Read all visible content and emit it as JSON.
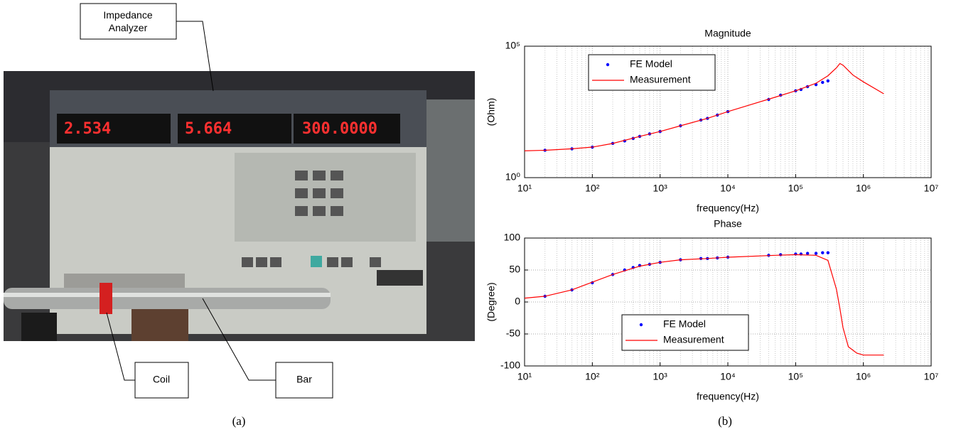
{
  "figure": {
    "callouts": [
      "Impedance Analyzer",
      "Coil",
      "Bar"
    ],
    "captions": [
      "(a)",
      "(b)"
    ],
    "displays": [
      "2.534",
      "5.664",
      "300.0000"
    ]
  },
  "chart_data": [
    {
      "type": "line",
      "title": "Magnitude",
      "xlabel": "frequency(Hz)",
      "ylabel": "(Ohm)",
      "xscale": "log",
      "yscale": "log",
      "xlim": [
        10,
        10000000
      ],
      "ylim": [
        1,
        100000
      ],
      "xticks": [
        {
          "value": 10,
          "label": "10¹"
        },
        {
          "value": 100,
          "label": "10²"
        },
        {
          "value": 1000,
          "label": "10³"
        },
        {
          "value": 10000,
          "label": "10⁴"
        },
        {
          "value": 100000,
          "label": "10⁵"
        },
        {
          "value": 1000000,
          "label": "10⁶"
        },
        {
          "value": 10000000,
          "label": "10⁷"
        }
      ],
      "yticks": [
        {
          "value": 1,
          "label": "10⁰"
        },
        {
          "value": 100000,
          "label": "10⁵"
        }
      ],
      "grid": true,
      "legend": "upper left",
      "series": [
        {
          "name": "FE Model",
          "style": "markers",
          "color": "#0000ff",
          "x": [
            20,
            50,
            100,
            200,
            300,
            400,
            500,
            700,
            1000,
            2000,
            4000,
            5000,
            7000,
            10000,
            40000,
            60000,
            100000,
            120000,
            150000,
            200000,
            250000,
            300000
          ],
          "values": [
            11,
            12.5,
            14.5,
            20,
            25,
            31,
            37,
            46,
            57,
            94,
            155,
            180,
            240,
            325,
            940,
            1370,
            2000,
            2250,
            2900,
            3470,
            4200,
            4800
          ]
        },
        {
          "name": "Measurement",
          "style": "line",
          "color": "#ff0000",
          "x": [
            10,
            20,
            50,
            100,
            200,
            500,
            1000,
            2000,
            5000,
            10000,
            20000,
            50000,
            100000,
            200000,
            300000,
            400000,
            450000,
            500000,
            700000,
            1000000,
            2000000
          ],
          "values": [
            10.5,
            11,
            12.5,
            14.5,
            20,
            37,
            57,
            94,
            180,
            325,
            560,
            1150,
            2000,
            3900,
            7500,
            15000,
            22000,
            19000,
            8000,
            4400,
            1550
          ]
        }
      ]
    },
    {
      "type": "line",
      "title": "Phase",
      "xlabel": "frequency(Hz)",
      "ylabel": "(Degree)",
      "xscale": "log",
      "yscale": "linear",
      "xlim": [
        10,
        10000000
      ],
      "ylim": [
        -100,
        100
      ],
      "xticks": [
        {
          "value": 10,
          "label": "10¹"
        },
        {
          "value": 100,
          "label": "10²"
        },
        {
          "value": 1000,
          "label": "10³"
        },
        {
          "value": 10000,
          "label": "10⁴"
        },
        {
          "value": 100000,
          "label": "10⁵"
        },
        {
          "value": 1000000,
          "label": "10⁶"
        },
        {
          "value": 10000000,
          "label": "10⁷"
        }
      ],
      "yticks": [
        -100,
        -50,
        0,
        50,
        100
      ],
      "grid": true,
      "legend": "lower center",
      "series": [
        {
          "name": "FE Model",
          "style": "markers",
          "color": "#0000ff",
          "x": [
            20,
            50,
            100,
            200,
            300,
            400,
            500,
            700,
            1000,
            2000,
            4000,
            5000,
            7000,
            10000,
            40000,
            60000,
            100000,
            120000,
            150000,
            200000,
            250000,
            300000
          ],
          "values": [
            9,
            19,
            30,
            43,
            50,
            54,
            57,
            59,
            62,
            66,
            68,
            68,
            69,
            70,
            73,
            74,
            75,
            75,
            76,
            76,
            77,
            77
          ]
        },
        {
          "name": "Measurement",
          "style": "line",
          "color": "#ff0000",
          "x": [
            10,
            20,
            50,
            100,
            200,
            500,
            1000,
            2000,
            5000,
            10000,
            50000,
            100000,
            200000,
            300000,
            400000,
            450000,
            500000,
            600000,
            800000,
            1000000,
            2000000
          ],
          "values": [
            6,
            9,
            19,
            31,
            43,
            56,
            62,
            66,
            68,
            70,
            73,
            74,
            73,
            65,
            20,
            -10,
            -40,
            -70,
            -80,
            -83,
            -83
          ]
        }
      ]
    }
  ]
}
